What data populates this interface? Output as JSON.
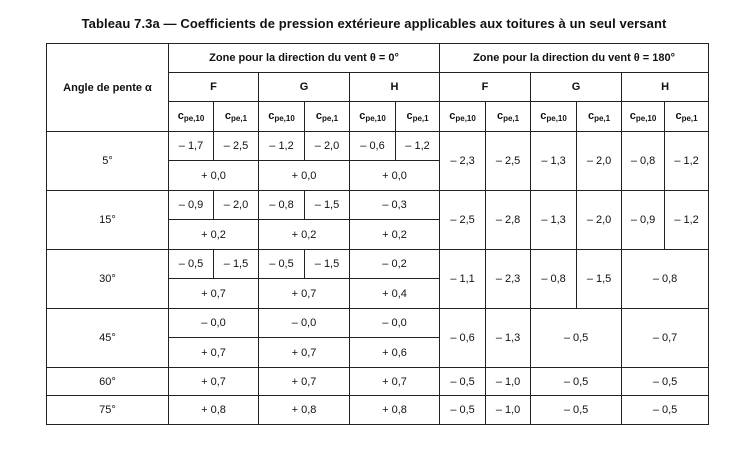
{
  "title": "Tableau 7.3a — Coefficients de pression extérieure applicables aux toitures à un seul versant",
  "header": {
    "angle_label": "Angle de pente α",
    "group_0": "Zone pour la direction du vent θ = 0°",
    "group_180": "Zone pour la direction du vent θ = 180°",
    "zones": [
      "F",
      "G",
      "H",
      "F",
      "G",
      "H"
    ],
    "cpe_base": "c",
    "cpe_main": "pe",
    "sub_10": "pe,10",
    "sub_1": "pe,1"
  },
  "rows": {
    "a5": {
      "angle": "5°",
      "f10": "– 1,7",
      "f1": "– 2,5",
      "g10": "– 1,2",
      "g1": "– 2,0",
      "h10": "– 0,6",
      "h1": "– 1,2",
      "fpos": "+ 0,0",
      "gpos": "+ 0,0",
      "hpos": "+ 0,0",
      "bf10": "– 2,3",
      "bf1": "– 2,5",
      "bg10": "– 1,3",
      "bg1": "– 2,0",
      "bh10": "– 0,8",
      "bh1": "– 1,2"
    },
    "a15": {
      "angle": "15°",
      "f10": "– 0,9",
      "f1": "– 2,0",
      "g10": "– 0,8",
      "g1": "– 1,5",
      "h": "– 0,3",
      "fpos": "+ 0,2",
      "gpos": "+ 0,2",
      "hpos": "+ 0,2",
      "bf10": "– 2,5",
      "bf1": "– 2,8",
      "bg10": "– 1,3",
      "bg1": "– 2,0",
      "bh10": "– 0,9",
      "bh1": "– 1,2"
    },
    "a30": {
      "angle": "30°",
      "f10": "– 0,5",
      "f1": "– 1,5",
      "g10": "– 0,5",
      "g1": "– 1,5",
      "h": "– 0,2",
      "fpos": "+ 0,7",
      "gpos": "+ 0,7",
      "hpos": "+ 0,4",
      "bf10": "– 1,1",
      "bf1": "– 2,3",
      "bg10": "– 0,8",
      "bg1": "– 1,5",
      "bh": "– 0,8"
    },
    "a45": {
      "angle": "45°",
      "f": "– 0,0",
      "g": "– 0,0",
      "h": "– 0,0",
      "fpos": "+ 0,7",
      "gpos": "+ 0,7",
      "hpos": "+ 0,6",
      "bf10": "– 0,6",
      "bf1": "– 1,3",
      "bg": "– 0,5",
      "bh": "– 0,7"
    },
    "a60": {
      "angle": "60°",
      "f": "+ 0,7",
      "g": "+ 0,7",
      "h": "+ 0,7",
      "bf10": "– 0,5",
      "bf1": "– 1,0",
      "bg": "– 0,5",
      "bh": "– 0,5"
    },
    "a75": {
      "angle": "75°",
      "f": "+ 0,8",
      "g": "+ 0,8",
      "h": "+ 0,8",
      "bf10": "– 0,5",
      "bf1": "– 1,0",
      "bg": "– 0,5",
      "bh": "– 0,5"
    }
  }
}
